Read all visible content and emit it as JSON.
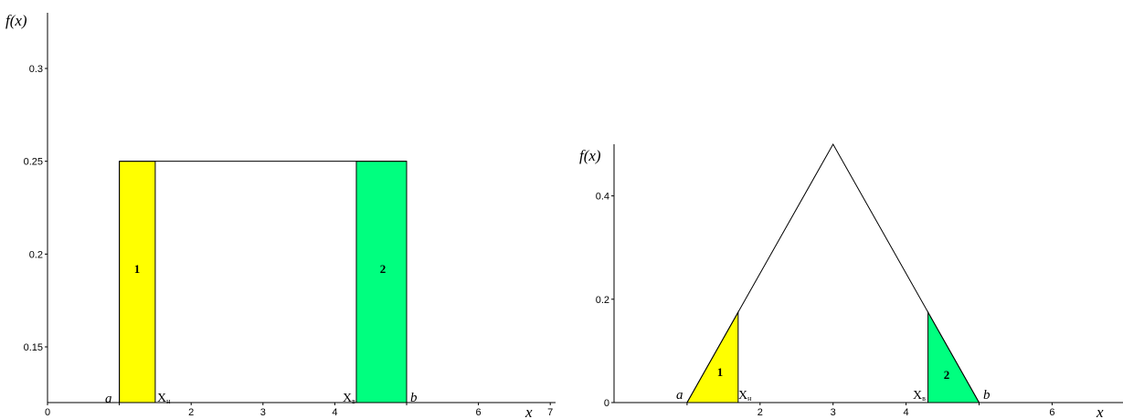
{
  "colors": {
    "region1": "#ffff00",
    "region2": "#00ff7f",
    "line": "#000000"
  },
  "chart_data": [
    {
      "type": "area",
      "ylabel": "f(x)",
      "xlabel": "x",
      "xlim": [
        0,
        7
      ],
      "ylim": [
        0.12,
        0.33
      ],
      "x_ticks": [
        0,
        1,
        2,
        3,
        4,
        5,
        6,
        7
      ],
      "x_tick_labels": [
        "0",
        "",
        "2",
        "3",
        "4",
        "",
        "6",
        "7"
      ],
      "y_ticks": [
        0.15,
        0.2,
        0.25,
        0.3
      ],
      "y_tick_labels": [
        "0.15",
        "0.2",
        "0.25",
        "0.3"
      ],
      "curve": {
        "x": [
          1,
          5
        ],
        "y": [
          0.25,
          0.25
        ]
      },
      "regions": [
        {
          "label": "1",
          "x0": 1,
          "x1": 1.5,
          "color": "#ffff00"
        },
        {
          "label": "2",
          "x0": 4.3,
          "x1": 5,
          "color": "#00ff7f"
        }
      ],
      "annotations": {
        "a": "a",
        "b": "b",
        "x_low": "X",
        "x_low_sub": "н",
        "x_high": "X",
        "x_high_sub": "в"
      }
    },
    {
      "type": "area",
      "ylabel": "f(x)",
      "xlabel": "x",
      "xlim": [
        0,
        7
      ],
      "ylim": [
        0,
        0.5
      ],
      "x_ticks": [
        1,
        2,
        3,
        4,
        5,
        6,
        7
      ],
      "x_tick_labels": [
        "",
        "2",
        "3",
        "4",
        "",
        "6",
        ""
      ],
      "y_ticks": [
        0,
        0.2,
        0.4
      ],
      "y_tick_labels": [
        "0",
        "0.2",
        "0.4"
      ],
      "curve": {
        "x": [
          1,
          3,
          5
        ],
        "y": [
          0,
          0.5,
          0
        ]
      },
      "regions": [
        {
          "label": "1",
          "x0": 1,
          "x1": 1.7,
          "color": "#ffff00"
        },
        {
          "label": "2",
          "x0": 4.3,
          "x1": 5,
          "color": "#00ff7f"
        }
      ],
      "annotations": {
        "a": "a",
        "b": "b",
        "x_low": "X",
        "x_low_sub": "н",
        "x_high": "X",
        "x_high_sub": "в"
      }
    }
  ]
}
